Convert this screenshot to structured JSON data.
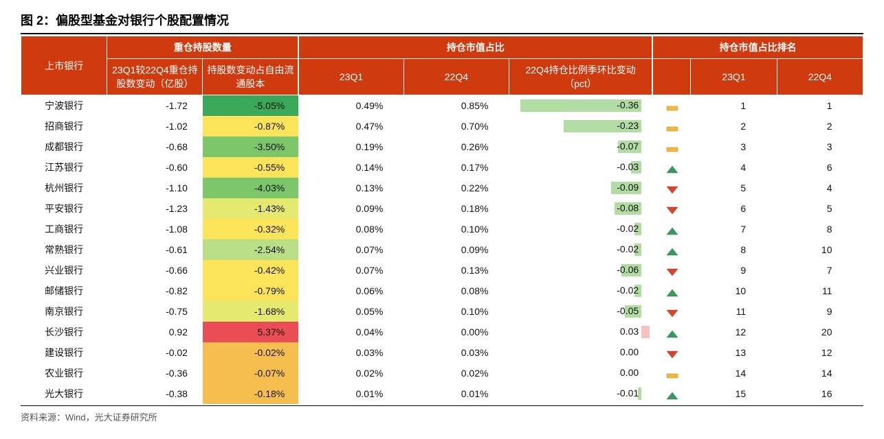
{
  "title": "图 2：偏股型基金对银行个股配置情况",
  "source": "资料来源：Wind，光大证券研究所",
  "table": {
    "header": {
      "col_bank": "上市银行",
      "group1": "重仓持股数量",
      "col_delta": "23Q1较22Q4重仓持股数变动（亿股）",
      "col_pctfree": "持股数变动占自由流通股本",
      "group2": "持仓市值占比",
      "col_23q1": "23Q1",
      "col_22q4": "22Q4",
      "col_qoq": "22Q4持仓比例季环比变动（pct）",
      "group3": "持仓市值占比排名",
      "col_r23q1": "23Q1",
      "col_r22q4": "22Q4"
    },
    "heat_scale": {
      "min": -5.05,
      "max": 5.37,
      "colors": {
        "deep_green": "#3aa858",
        "green": "#7cc66a",
        "light_green": "#b8df85",
        "yellow_green": "#e6e96f",
        "yellow": "#fbe35a",
        "orange": "#f6be4f",
        "red": "#ea4d56"
      }
    },
    "bar_scale": {
      "max_abs": 0.36,
      "neg_color": "#b1dca2",
      "pos_color": "#f5c3bf"
    },
    "indicator": {
      "flat": "#f2b93a",
      "up": "#3a9a5e",
      "down": "#d8452c"
    },
    "rows": [
      {
        "bank": "宁波银行",
        "delta": "-1.72",
        "pctfree": "-5.05%",
        "pf_val": -5.05,
        "q1": "0.49%",
        "q4": "0.85%",
        "qoq": "-0.36",
        "qoq_val": -0.36,
        "ind": "flat",
        "r1": "1",
        "r4": "1"
      },
      {
        "bank": "招商银行",
        "delta": "-1.02",
        "pctfree": "-0.87%",
        "pf_val": -0.87,
        "q1": "0.47%",
        "q4": "0.70%",
        "qoq": "-0.23",
        "qoq_val": -0.23,
        "ind": "flat",
        "r1": "2",
        "r4": "2"
      },
      {
        "bank": "成都银行",
        "delta": "-0.68",
        "pctfree": "-3.50%",
        "pf_val": -3.5,
        "q1": "0.19%",
        "q4": "0.26%",
        "qoq": "-0.07",
        "qoq_val": -0.07,
        "ind": "flat",
        "r1": "3",
        "r4": "3"
      },
      {
        "bank": "江苏银行",
        "delta": "-0.60",
        "pctfree": "-0.55%",
        "pf_val": -0.55,
        "q1": "0.14%",
        "q4": "0.17%",
        "qoq": "-0.03",
        "qoq_val": -0.03,
        "ind": "up",
        "r1": "4",
        "r4": "6"
      },
      {
        "bank": "杭州银行",
        "delta": "-1.10",
        "pctfree": "-4.03%",
        "pf_val": -4.03,
        "q1": "0.13%",
        "q4": "0.22%",
        "qoq": "-0.09",
        "qoq_val": -0.09,
        "ind": "down",
        "r1": "5",
        "r4": "4"
      },
      {
        "bank": "平安银行",
        "delta": "-1.23",
        "pctfree": "-1.43%",
        "pf_val": -1.43,
        "q1": "0.09%",
        "q4": "0.18%",
        "qoq": "-0.08",
        "qoq_val": -0.08,
        "ind": "down",
        "r1": "6",
        "r4": "5"
      },
      {
        "bank": "工商银行",
        "delta": "-1.08",
        "pctfree": "-0.32%",
        "pf_val": -0.32,
        "q1": "0.08%",
        "q4": "0.10%",
        "qoq": "-0.02",
        "qoq_val": -0.02,
        "ind": "up",
        "r1": "7",
        "r4": "8"
      },
      {
        "bank": "常熟银行",
        "delta": "-0.61",
        "pctfree": "-2.54%",
        "pf_val": -2.54,
        "q1": "0.07%",
        "q4": "0.09%",
        "qoq": "-0.02",
        "qoq_val": -0.02,
        "ind": "up",
        "r1": "8",
        "r4": "10"
      },
      {
        "bank": "兴业银行",
        "delta": "-0.66",
        "pctfree": "-0.42%",
        "pf_val": -0.42,
        "q1": "0.07%",
        "q4": "0.13%",
        "qoq": "-0.06",
        "qoq_val": -0.06,
        "ind": "down",
        "r1": "9",
        "r4": "7"
      },
      {
        "bank": "邮储银行",
        "delta": "-0.82",
        "pctfree": "-0.79%",
        "pf_val": -0.79,
        "q1": "0.06%",
        "q4": "0.08%",
        "qoq": "-0.02",
        "qoq_val": -0.02,
        "ind": "up",
        "r1": "10",
        "r4": "11"
      },
      {
        "bank": "南京银行",
        "delta": "-0.75",
        "pctfree": "-1.68%",
        "pf_val": -1.68,
        "q1": "0.05%",
        "q4": "0.10%",
        "qoq": "-0.05",
        "qoq_val": -0.05,
        "ind": "down",
        "r1": "11",
        "r4": "9"
      },
      {
        "bank": "长沙银行",
        "delta": "0.92",
        "pctfree": "5.37%",
        "pf_val": 5.37,
        "q1": "0.04%",
        "q4": "0.00%",
        "qoq": "0.03",
        "qoq_val": 0.03,
        "ind": "up",
        "r1": "12",
        "r4": "20"
      },
      {
        "bank": "建设银行",
        "delta": "-0.02",
        "pctfree": "-0.02%",
        "pf_val": -0.02,
        "q1": "0.03%",
        "q4": "0.03%",
        "qoq": "0.00",
        "qoq_val": 0.0,
        "ind": "down",
        "r1": "13",
        "r4": "12"
      },
      {
        "bank": "农业银行",
        "delta": "-0.36",
        "pctfree": "-0.07%",
        "pf_val": -0.07,
        "q1": "0.02%",
        "q4": "0.02%",
        "qoq": "0.00",
        "qoq_val": 0.0,
        "ind": "flat",
        "r1": "14",
        "r4": "14"
      },
      {
        "bank": "光大银行",
        "delta": "-0.38",
        "pctfree": "-0.18%",
        "pf_val": -0.18,
        "q1": "0.01%",
        "q4": "0.01%",
        "qoq": "-0.01",
        "qoq_val": -0.01,
        "ind": "up",
        "r1": "15",
        "r4": "16"
      }
    ]
  }
}
